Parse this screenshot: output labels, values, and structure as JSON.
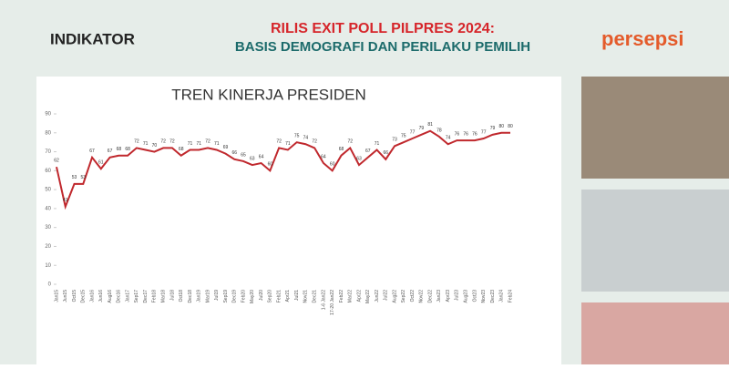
{
  "header": {
    "left_logo": "INDIKATOR",
    "title_line1": "RILIS EXIT POLL PILPRES 2024:",
    "title_line2": "BASIS DEMOGRAFI DAN PERILAKU PEMILIH",
    "right_logo": "persepsi"
  },
  "chart_data": {
    "type": "line",
    "title": "TREN KINERJA PRESIDEN",
    "categories": [
      "Jan15",
      "Jun15",
      "Oct15",
      "Dec15",
      "Jan16",
      "Jun16",
      "Aug16",
      "Dec16",
      "Jan17",
      "Sep17",
      "Dec17",
      "Feb18",
      "Mar18",
      "Jul18",
      "Oct18",
      "Dec18",
      "Jan19",
      "Mar19",
      "Jul19",
      "Sep19",
      "Dec19",
      "Feb20",
      "May20",
      "Jul20",
      "Sep20",
      "Feb21",
      "Apr21",
      "Jul21",
      "Nov21",
      "Dec21",
      "1-6 Jan22",
      "17-20 Jan22",
      "Feb22",
      "Mar22",
      "Apr22",
      "May22",
      "Jun22",
      "Jul22",
      "Aug22",
      "Sep22",
      "Oct22",
      "Nov22",
      "Dec22",
      "Jan23",
      "Apr23",
      "Jul23",
      "Aug23",
      "Oct23",
      "Nov23",
      "Dec23",
      "Jan24",
      "Feb24"
    ],
    "series": [
      {
        "name": "Kinerja Presiden",
        "color": "#c0282d",
        "values": [
          62,
          41,
          53,
          53,
          67,
          61,
          67,
          68,
          68,
          72,
          71,
          70,
          72,
          72,
          68,
          71,
          71,
          72,
          71,
          69,
          66,
          65,
          63,
          64,
          60,
          72,
          71,
          75,
          74,
          72,
          64,
          60,
          68,
          72,
          63,
          67,
          71,
          66,
          73,
          75,
          77,
          79,
          81,
          78,
          74,
          76,
          76,
          76,
          77,
          79,
          80,
          80
        ]
      }
    ],
    "ylim": [
      0,
      90
    ],
    "yticks": [
      0,
      10,
      20,
      30,
      40,
      50,
      60,
      70,
      80,
      90
    ],
    "grid": false
  }
}
